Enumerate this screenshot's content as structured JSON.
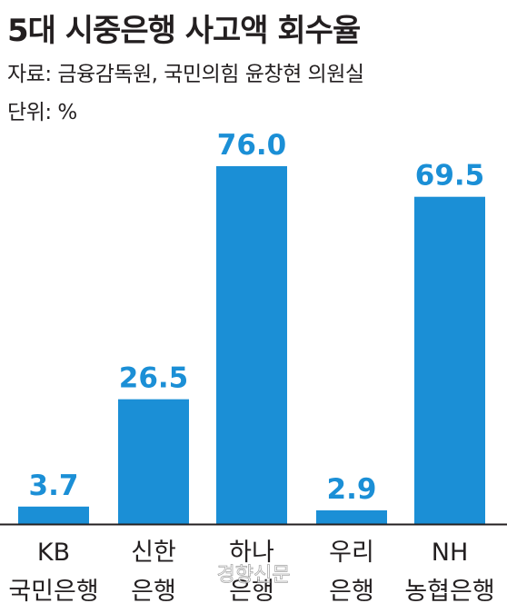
{
  "header": {
    "title": "5대 시중은행 사고액 회수율",
    "source": "자료: 금융감독원, 국민의힘 윤창현 의원실",
    "unit": "단위: %"
  },
  "watermark": "경향신문",
  "colors": {
    "bar": "#1b8fd6",
    "text": "#231f20",
    "axis": "#231f20"
  },
  "chart_data": {
    "type": "bar",
    "title": "5대 시중은행 사고액 회수율",
    "ylabel": "",
    "xlabel": "",
    "ylim": [
      0,
      80
    ],
    "grid": false,
    "categories": [
      [
        "KB",
        "국민은행"
      ],
      [
        "신한",
        "은행"
      ],
      [
        "하나",
        "은행"
      ],
      [
        "우리",
        "은행"
      ],
      [
        "NH",
        "농협은행"
      ]
    ],
    "values": [
      3.7,
      26.5,
      76.0,
      2.9,
      69.5
    ],
    "value_labels": [
      "3.7",
      "26.5",
      "76.0",
      "2.9",
      "69.5"
    ]
  }
}
